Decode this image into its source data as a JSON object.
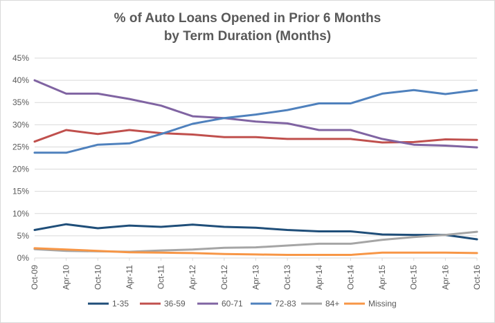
{
  "chart_data": {
    "type": "line",
    "title_line1": "% of Auto Loans Opened in Prior 6 Months",
    "title_line2": "by Term Duration (Months)",
    "xlabel": "",
    "ylabel": "",
    "ylim": [
      0,
      45
    ],
    "yticks": [
      "0%",
      "5%",
      "10%",
      "15%",
      "20%",
      "25%",
      "30%",
      "35%",
      "40%",
      "45%"
    ],
    "categories": [
      "Oct-09",
      "Apr-10",
      "Oct-10",
      "Apr-11",
      "Oct-11",
      "Apr-12",
      "Oct-12",
      "Apr-13",
      "Oct-13",
      "Apr-14",
      "Oct-14",
      "Apr-15",
      "Oct-15",
      "Apr-16",
      "Oct-16"
    ],
    "grid": true,
    "legend_position": "bottom",
    "series": [
      {
        "name": "1-35",
        "color": "#1f4e79",
        "values": [
          6.3,
          7.6,
          6.7,
          7.3,
          7.0,
          7.5,
          7.0,
          6.8,
          6.3,
          6.0,
          6.0,
          5.3,
          5.2,
          5.2,
          4.2
        ]
      },
      {
        "name": "36-59",
        "color": "#c0504d",
        "values": [
          26.2,
          28.8,
          27.9,
          28.8,
          28.1,
          27.8,
          27.2,
          27.2,
          26.8,
          26.8,
          26.8,
          26.0,
          26.1,
          26.7,
          26.6
        ]
      },
      {
        "name": "60-71",
        "color": "#8064a2",
        "values": [
          40.0,
          37.0,
          37.0,
          35.8,
          34.3,
          31.9,
          31.5,
          30.7,
          30.3,
          28.8,
          28.8,
          26.8,
          25.5,
          25.3,
          24.9
        ]
      },
      {
        "name": "72-83",
        "color": "#4f81bd",
        "values": [
          23.7,
          23.7,
          25.5,
          25.8,
          27.9,
          30.2,
          31.5,
          32.3,
          33.3,
          34.8,
          34.8,
          37.0,
          37.8,
          36.9,
          37.8
        ]
      },
      {
        "name": "84+",
        "color": "#a5a5a5",
        "values": [
          2.0,
          1.6,
          1.5,
          1.4,
          1.7,
          1.9,
          2.3,
          2.4,
          2.8,
          3.2,
          3.2,
          4.1,
          4.7,
          5.2,
          5.9
        ]
      },
      {
        "name": "Missing",
        "color": "#f79646",
        "values": [
          2.2,
          1.9,
          1.6,
          1.3,
          1.2,
          1.1,
          0.9,
          0.8,
          0.7,
          0.7,
          0.7,
          1.2,
          1.2,
          1.2,
          1.1
        ]
      }
    ]
  }
}
